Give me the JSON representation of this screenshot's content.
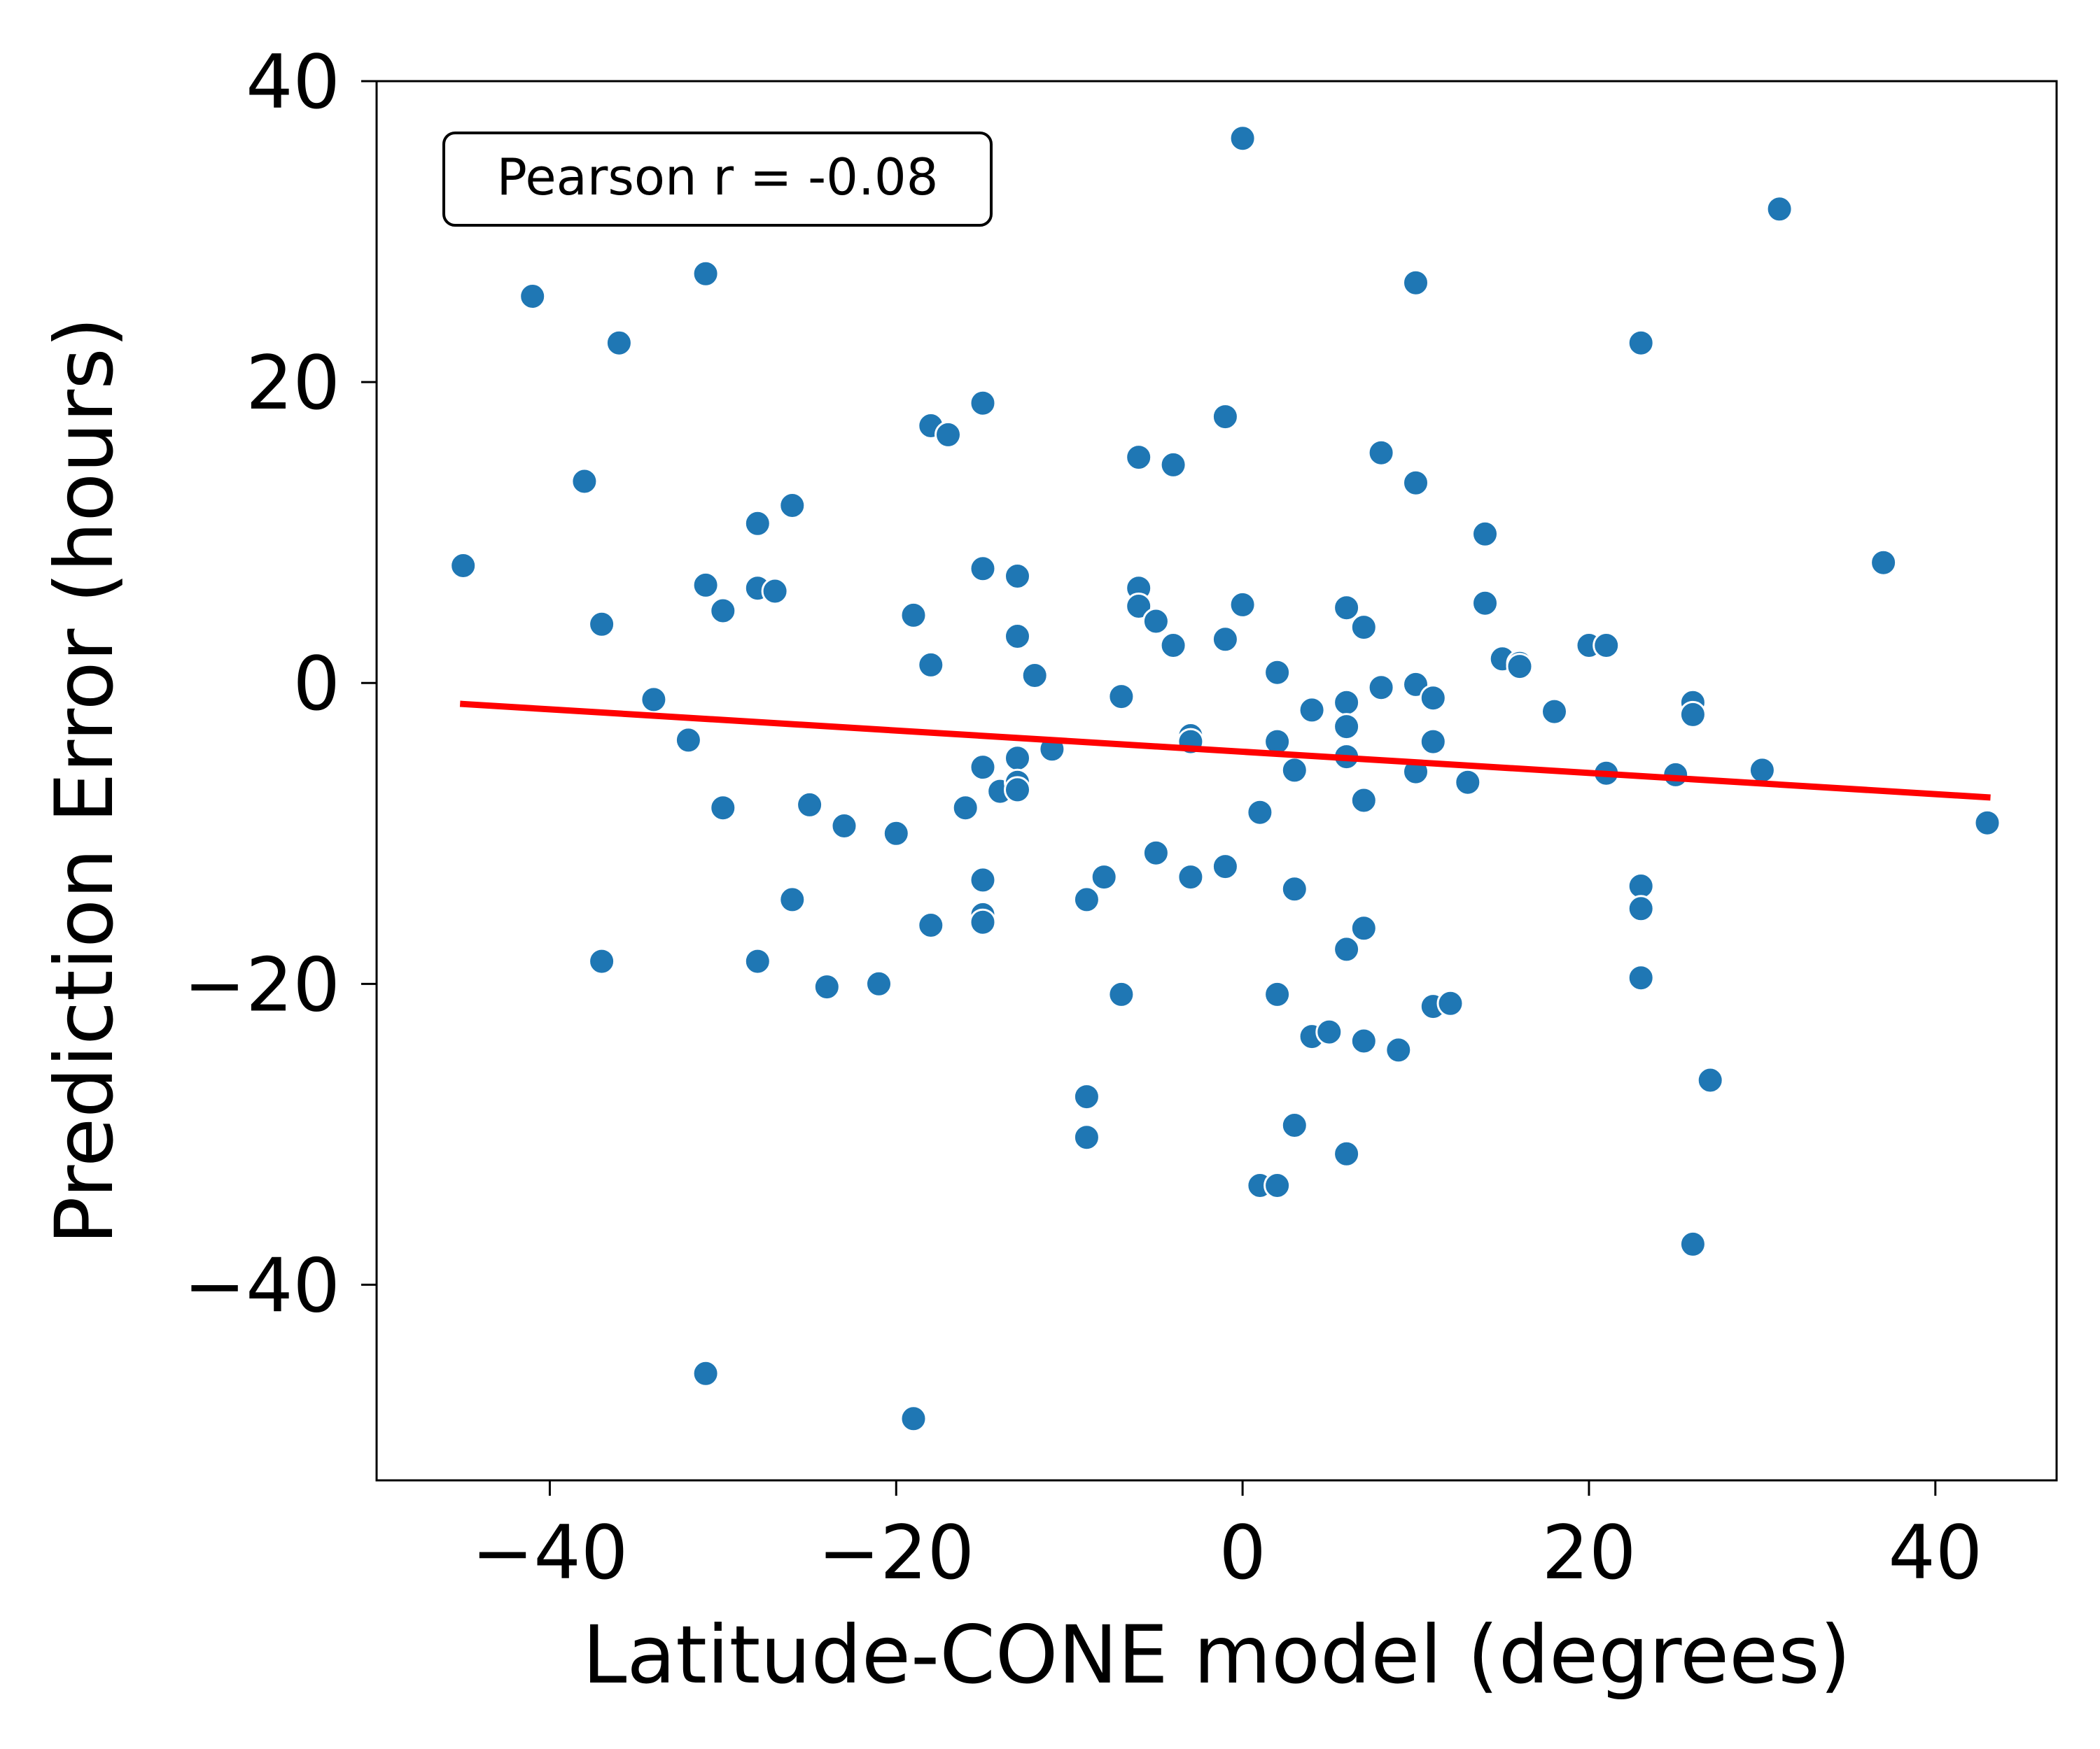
{
  "chart_data": {
    "type": "scatter",
    "xlabel": "Latitude-CONE model (degrees)",
    "ylabel": "Prediction Error (hours)",
    "xlim": [
      -50,
      47
    ],
    "ylim": [
      -53,
      40
    ],
    "xticks": [
      -40,
      -20,
      0,
      20,
      40
    ],
    "yticks": [
      -40,
      -20,
      0,
      20,
      40
    ],
    "xtick_labels": [
      "−40",
      "−20",
      "0",
      "20",
      "40"
    ],
    "ytick_labels": [
      "−40",
      "−20",
      "0",
      "20",
      "40"
    ],
    "grid": false,
    "annotation": "Pearson r = -0.08",
    "point_color": "#1f77b4",
    "fit_color": "#ff0000",
    "fit_line": {
      "x": [
        -45,
        43
      ],
      "y": [
        -1.4,
        -7.6
      ]
    },
    "points": [
      [
        -45,
        7.8
      ],
      [
        -41,
        25.7
      ],
      [
        -38,
        13.4
      ],
      [
        -37,
        3.9
      ],
      [
        -37,
        -18.5
      ],
      [
        -36,
        22.6
      ],
      [
        -34,
        -1.1
      ],
      [
        -32,
        -3.8
      ],
      [
        -31,
        27.2
      ],
      [
        -31,
        6.5
      ],
      [
        -31,
        -45.9
      ],
      [
        -30,
        4.8
      ],
      [
        -30,
        -8.3
      ],
      [
        -28,
        10.6
      ],
      [
        -28,
        6.3
      ],
      [
        -28,
        -18.5
      ],
      [
        -27,
        6.1
      ],
      [
        -26,
        11.8
      ],
      [
        -26,
        -14.4
      ],
      [
        -25,
        -8.1
      ],
      [
        -24,
        -20.2
      ],
      [
        -23,
        -9.5
      ],
      [
        -21,
        -20.0
      ],
      [
        -20,
        -10.0
      ],
      [
        -19,
        4.5
      ],
      [
        -19,
        -48.9
      ],
      [
        -18,
        17.1
      ],
      [
        -18,
        1.2
      ],
      [
        -18,
        -16.1
      ],
      [
        -17,
        16.5
      ],
      [
        -16,
        -8.3
      ],
      [
        -15,
        18.6
      ],
      [
        -15,
        7.6
      ],
      [
        -15,
        -5.6
      ],
      [
        -15,
        -13.1
      ],
      [
        -15,
        -15.4
      ],
      [
        -15,
        -15.9
      ],
      [
        -14,
        -7.2
      ],
      [
        -13,
        7.1
      ],
      [
        -13,
        3.1
      ],
      [
        -13,
        -5.0
      ],
      [
        -13,
        -6.6
      ],
      [
        -13,
        -7.1
      ],
      [
        -12,
        0.5
      ],
      [
        -11,
        -4.4
      ],
      [
        -9,
        -14.4
      ],
      [
        -9,
        -27.5
      ],
      [
        -9,
        -30.2
      ],
      [
        -8,
        -12.9
      ],
      [
        -7,
        -0.9
      ],
      [
        -7,
        -20.7
      ],
      [
        -6,
        15.0
      ],
      [
        -6,
        6.3
      ],
      [
        -6,
        5.1
      ],
      [
        -5,
        4.1
      ],
      [
        -5,
        -11.3
      ],
      [
        -4,
        14.5
      ],
      [
        -4,
        2.5
      ],
      [
        -3,
        -3.5
      ],
      [
        -3,
        -3.9
      ],
      [
        -3,
        -12.9
      ],
      [
        -1,
        17.7
      ],
      [
        -1,
        2.9
      ],
      [
        -1,
        -12.2
      ],
      [
        0,
        36.2
      ],
      [
        0,
        5.2
      ],
      [
        1,
        -8.6
      ],
      [
        1,
        -33.4
      ],
      [
        2,
        0.7
      ],
      [
        2,
        -3.9
      ],
      [
        2,
        -20.7
      ],
      [
        2,
        -33.4
      ],
      [
        3,
        -5.8
      ],
      [
        3,
        -13.7
      ],
      [
        3,
        -29.4
      ],
      [
        4,
        -1.8
      ],
      [
        4,
        -23.5
      ],
      [
        5,
        -23.2
      ],
      [
        6,
        5.0
      ],
      [
        6,
        -1.3
      ],
      [
        6,
        -2.9
      ],
      [
        6,
        -4.9
      ],
      [
        6,
        -17.7
      ],
      [
        6,
        -31.3
      ],
      [
        7,
        3.7
      ],
      [
        7,
        -7.8
      ],
      [
        7,
        -16.3
      ],
      [
        7,
        -23.8
      ],
      [
        8,
        15.3
      ],
      [
        8,
        -0.3
      ],
      [
        9,
        -24.4
      ],
      [
        10,
        26.6
      ],
      [
        10,
        13.3
      ],
      [
        10,
        -0.1
      ],
      [
        10,
        -5.9
      ],
      [
        11,
        -1.0
      ],
      [
        11,
        -3.9
      ],
      [
        11,
        -21.5
      ],
      [
        12,
        -21.3
      ],
      [
        13,
        -6.6
      ],
      [
        14,
        9.9
      ],
      [
        14,
        5.3
      ],
      [
        15,
        1.6
      ],
      [
        16,
        1.3
      ],
      [
        16,
        1.1
      ],
      [
        18,
        -1.9
      ],
      [
        20,
        2.5
      ],
      [
        21,
        2.5
      ],
      [
        21,
        -6.0
      ],
      [
        23,
        22.6
      ],
      [
        23,
        -13.5
      ],
      [
        23,
        -15.0
      ],
      [
        23,
        -19.6
      ],
      [
        25,
        -6.1
      ],
      [
        26,
        -1.3
      ],
      [
        26,
        -2.1
      ],
      [
        26,
        -37.3
      ],
      [
        27,
        -26.4
      ],
      [
        30,
        -5.8
      ],
      [
        31,
        31.5
      ],
      [
        37,
        8.0
      ],
      [
        43,
        -9.3
      ]
    ]
  }
}
